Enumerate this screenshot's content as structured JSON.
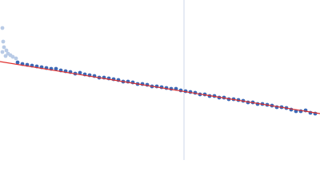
{
  "chart_data": {
    "type": "scatter",
    "xlim": [
      0,
      400
    ],
    "ylim": [
      0,
      200
    ],
    "reference_x": 230,
    "reference_color": "#cdd7ea",
    "series": [
      {
        "type": "scatter",
        "color": "#b9cbe6",
        "x": [
          3,
          3,
          4,
          5,
          7,
          8,
          10,
          13,
          16,
          20
        ],
        "values": [
          165,
          135,
          148,
          141,
          130,
          137,
          133,
          131,
          129,
          127
        ]
      },
      {
        "type": "scatter",
        "color": "#3d68b5",
        "x": [
          22,
          28,
          34,
          40,
          46,
          52,
          58,
          64,
          70,
          76,
          82,
          88,
          94,
          100,
          106,
          112,
          118,
          124,
          130,
          136,
          142,
          148,
          154,
          160,
          166,
          172,
          178,
          184,
          190,
          196,
          202,
          208,
          214,
          220,
          226,
          232,
          238,
          244,
          250,
          256,
          262,
          268,
          274,
          280,
          286,
          292,
          298,
          304,
          310,
          316,
          322,
          328,
          334,
          340,
          346,
          352,
          358,
          364,
          370,
          376,
          382,
          388,
          394
        ],
        "values": [
          122,
          120,
          119,
          118,
          117,
          116,
          115,
          114,
          114,
          112,
          111,
          110,
          108,
          109,
          107,
          106,
          105,
          103,
          103,
          102,
          101,
          100,
          98,
          98,
          97,
          95,
          95,
          94,
          92,
          92,
          91,
          90,
          89,
          89,
          87,
          86,
          85,
          84,
          82,
          82,
          80,
          80,
          78,
          78,
          76,
          76,
          75,
          74,
          72,
          72,
          70,
          70,
          69,
          68,
          66,
          66,
          65,
          63,
          61,
          61,
          62,
          59,
          58
        ]
      },
      {
        "type": "line",
        "color": "#e0302e",
        "x": [
          0,
          400
        ],
        "values": [
          123,
          58
        ]
      }
    ]
  }
}
